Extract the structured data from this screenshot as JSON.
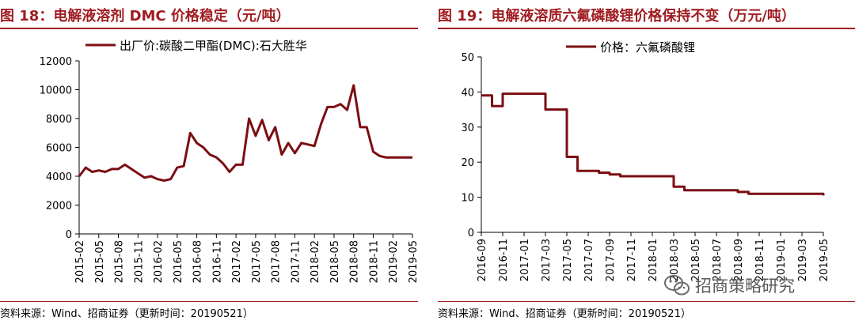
{
  "charts": [
    {
      "fig_title": "图 18：电解液溶剂 DMC 价格稳定（元/吨）",
      "source": "资料来源：Wind、招商证券（更新时间：20190521）"
    },
    {
      "fig_title": "图 19：电解液溶质六氟磷酸锂价格保持不变（万元/吨）",
      "source": "资料来源：Wind、招商证券（更新时间：20190521）"
    }
  ],
  "watermark": {
    "text": "招商策略研究",
    "icon": "wechat-icon"
  },
  "series_color": "#7b0e12",
  "title_color": "#a01d22",
  "chart_data": [
    {
      "type": "line",
      "title": "图 18：电解液溶剂 DMC 价格稳定（元/吨）",
      "xlabel": "",
      "ylabel": "",
      "ylim": [
        0,
        12000
      ],
      "yticks": [
        "0",
        "2000",
        "4000",
        "6000",
        "8000",
        "10000",
        "12000"
      ],
      "xticks": [
        "2015-02",
        "2015-05",
        "2015-08",
        "2015-11",
        "2016-02",
        "2016-05",
        "2016-08",
        "2016-11",
        "2017-02",
        "2017-05",
        "2017-08",
        "2017-11",
        "2018-02",
        "2018-05",
        "2018-08",
        "2018-11",
        "2019-02",
        "2019-05"
      ],
      "xlim": [
        "2015-02",
        "2019-05"
      ],
      "legend": "top-left",
      "grid": false,
      "series": [
        {
          "name": "出厂价:碳酸二甲酯(DMC):石大胜华",
          "x": [
            "2015-02",
            "2015-03",
            "2015-04",
            "2015-05",
            "2015-06",
            "2015-07",
            "2015-08",
            "2015-09",
            "2015-10",
            "2015-11",
            "2015-12",
            "2016-01",
            "2016-02",
            "2016-03",
            "2016-04",
            "2016-05",
            "2016-06",
            "2016-07",
            "2016-08",
            "2016-09",
            "2016-10",
            "2016-11",
            "2016-12",
            "2017-01",
            "2017-02",
            "2017-03",
            "2017-04",
            "2017-05",
            "2017-06",
            "2017-07",
            "2017-08",
            "2017-09",
            "2017-10",
            "2017-11",
            "2017-12",
            "2018-01",
            "2018-02",
            "2018-03",
            "2018-04",
            "2018-05",
            "2018-06",
            "2018-07",
            "2018-08",
            "2018-09",
            "2018-10",
            "2018-11",
            "2018-12",
            "2019-01",
            "2019-02",
            "2019-03",
            "2019-04",
            "2019-05"
          ],
          "values": [
            4000,
            4600,
            4300,
            4400,
            4300,
            4500,
            4500,
            4800,
            4500,
            4200,
            3900,
            4000,
            3800,
            3700,
            3800,
            4600,
            4700,
            7000,
            6300,
            6000,
            5500,
            5300,
            4900,
            4300,
            4800,
            4800,
            8000,
            6800,
            7900,
            6500,
            7400,
            5500,
            6300,
            5600,
            6300,
            6200,
            6100,
            7600,
            8800,
            8800,
            9000,
            8600,
            10300,
            7400,
            7400,
            5700,
            5400,
            5300,
            5300,
            5300,
            5300,
            5300
          ]
        }
      ]
    },
    {
      "type": "line",
      "title": "图 19：电解液溶质六氟磷酸锂价格保持不变（万元/吨）",
      "xlabel": "",
      "ylabel": "",
      "ylim": [
        0,
        50
      ],
      "yticks": [
        "0",
        "10",
        "20",
        "30",
        "40",
        "50"
      ],
      "xticks": [
        "2016-09",
        "2016-11",
        "2017-01",
        "2017-03",
        "2017-05",
        "2017-07",
        "2017-09",
        "2017-11",
        "2018-01",
        "2018-03",
        "2018-05",
        "2018-07",
        "2018-09",
        "2018-11",
        "2019-01",
        "2019-03",
        "2019-05"
      ],
      "xlim": [
        "2016-09",
        "2019-05"
      ],
      "legend": "top-left",
      "grid": false,
      "series": [
        {
          "name": "价格：六氟磷酸锂",
          "x": [
            "2016-09",
            "2016-10",
            "2016-11",
            "2016-12",
            "2017-01",
            "2017-02",
            "2017-03",
            "2017-04",
            "2017-05",
            "2017-06",
            "2017-07",
            "2017-08",
            "2017-09",
            "2017-10",
            "2017-11",
            "2017-12",
            "2018-01",
            "2018-02",
            "2018-03",
            "2018-04",
            "2018-05",
            "2018-06",
            "2018-07",
            "2018-08",
            "2018-09",
            "2018-10",
            "2018-11",
            "2018-12",
            "2019-01",
            "2019-02",
            "2019-03",
            "2019-04",
            "2019-05"
          ],
          "values": [
            39,
            36,
            39.5,
            39.5,
            39.5,
            39.5,
            35,
            35,
            21.5,
            17.5,
            17.5,
            17,
            16.5,
            16,
            16,
            16,
            16,
            16,
            13,
            12,
            12,
            12,
            12,
            12,
            11.5,
            11,
            11,
            11,
            11,
            11,
            11,
            11,
            10.5
          ]
        }
      ]
    }
  ]
}
